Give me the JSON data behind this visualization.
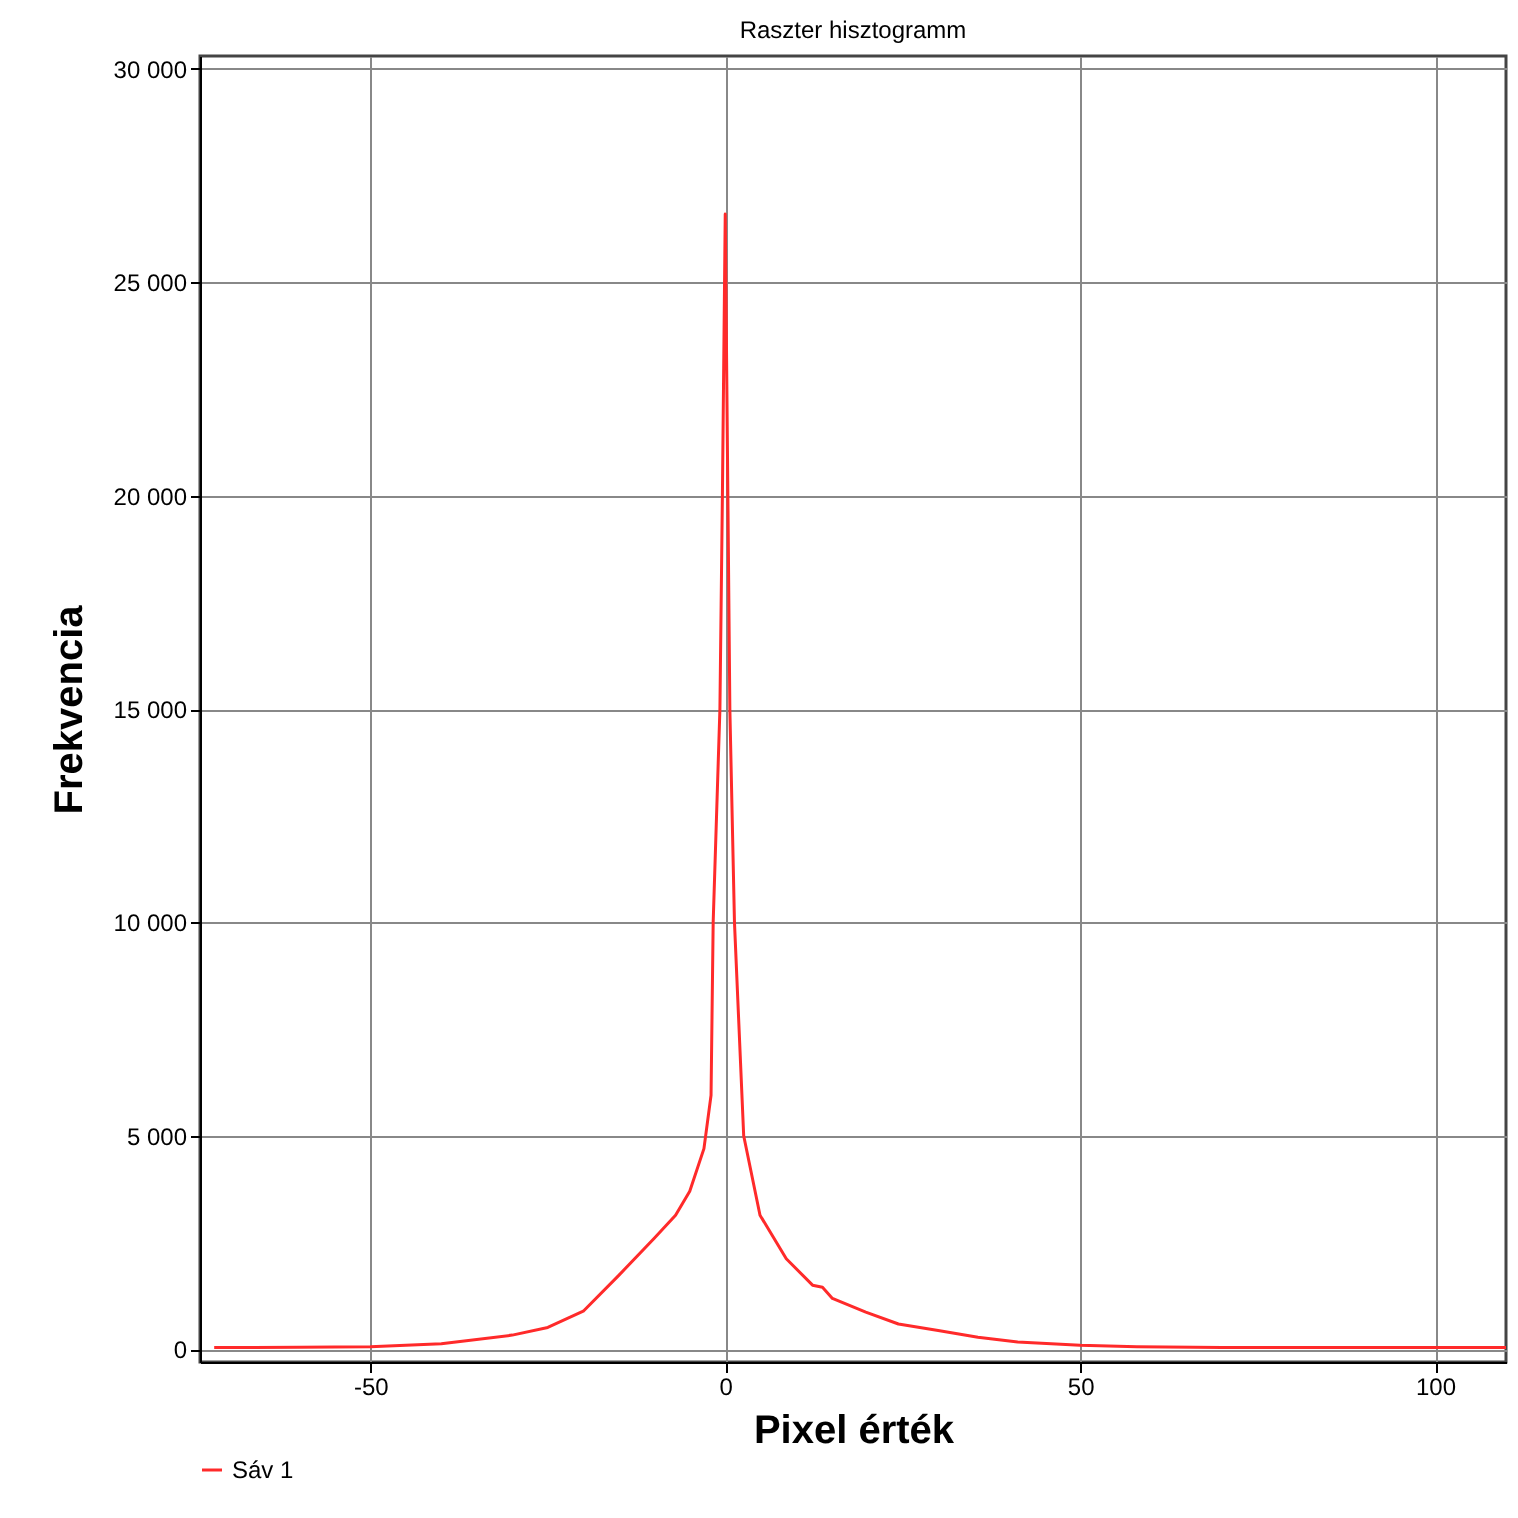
{
  "chart_data": {
    "type": "line",
    "title": "Raszter hisztogramm",
    "xlabel": "Pixel érték",
    "ylabel": "Frekvencia",
    "xlim": [
      -74,
      110
    ],
    "ylim": [
      -300,
      30300
    ],
    "xticks": [
      -50,
      0,
      50,
      100
    ],
    "yticks": [
      {
        "value": 0,
        "label": "0"
      },
      {
        "value": 5000,
        "label": "5 000"
      },
      {
        "value": 10000,
        "label": "10 000"
      },
      {
        "value": 15000,
        "label": "15 000"
      },
      {
        "value": 20000,
        "label": "20 000"
      },
      {
        "value": 25000,
        "label": "25 000"
      },
      {
        "value": 30000,
        "label": "30 000"
      }
    ],
    "grid": true,
    "legend": "bottom",
    "marker": "none",
    "line_style": "solid",
    "series": [
      {
        "name": "Sáv 1",
        "color": "#ff2a2a",
        "x": [
          -72,
          -60,
          -50,
          -40,
          -30,
          -25,
          -20,
          -15,
          -10,
          -7,
          -5,
          -3,
          -2,
          -1.7,
          -0.75,
          -0.4,
          0,
          0.65,
          1.3,
          2.6,
          4.9,
          8.6,
          12.3,
          13.7,
          15.1,
          19.8,
          24.4,
          30,
          35.6,
          41.2,
          50,
          58,
          70,
          90,
          110
        ],
        "values": [
          40,
          45,
          60,
          130,
          330,
          510,
          890,
          1730,
          2600,
          3140,
          3700,
          4700,
          5950,
          10000,
          15000,
          20000,
          26600,
          15000,
          10000,
          5000,
          3140,
          2120,
          1500,
          1450,
          1190,
          870,
          590,
          440,
          280,
          170,
          90,
          60,
          40,
          40,
          40
        ]
      }
    ]
  }
}
